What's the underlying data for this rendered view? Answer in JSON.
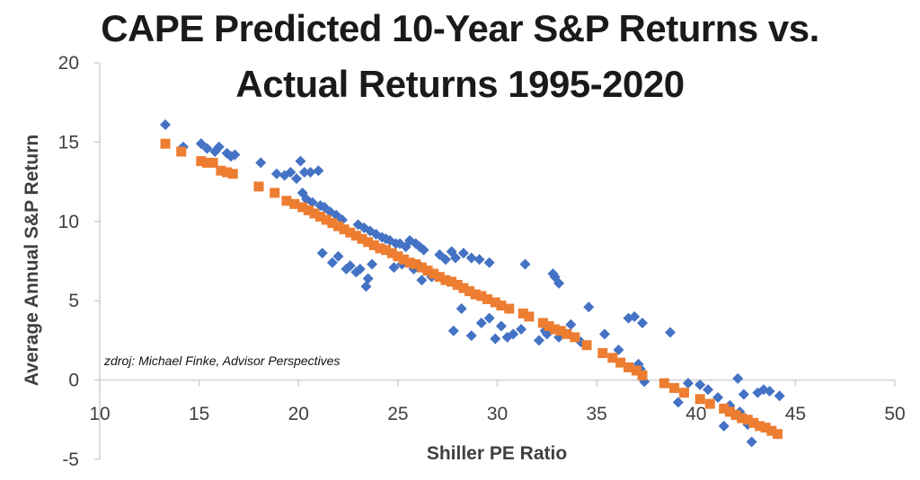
{
  "chart_data": {
    "type": "scatter",
    "title_lines": [
      "CAPE Predicted 10-Year S&P Returns vs.",
      "Actual Returns 1995-2020"
    ],
    "xlabel": "Shiller PE Ratio",
    "ylabel": "Average Annual S&P Return",
    "xlim": [
      10,
      50
    ],
    "ylim": [
      -5,
      20
    ],
    "x_ticks": [
      10,
      15,
      20,
      25,
      30,
      35,
      40,
      45,
      50
    ],
    "y_ticks": [
      -5,
      0,
      5,
      10,
      15,
      20
    ],
    "grid": false,
    "source_note": "zdroj: Michael Finke, Advisor Perspectives",
    "series": [
      {
        "marker": "diamond",
        "color": "#4472C4",
        "x": [
          13.3,
          14.2,
          15.1,
          15.4,
          15.8,
          16.0,
          16.4,
          16.6,
          16.8,
          18.1,
          18.9,
          19.3,
          19.6,
          19.9,
          20.1,
          20.3,
          20.6,
          21.0,
          20.2,
          20.4,
          20.7,
          21.1,
          21.3,
          21.6,
          21.9,
          22.2,
          21.2,
          21.7,
          22.0,
          22.4,
          22.6,
          22.9,
          23.1,
          23.4,
          23.5,
          23.7,
          23.0,
          23.3,
          23.6,
          23.9,
          24.2,
          24.4,
          24.6,
          24.9,
          25.1,
          25.4,
          25.6,
          25.9,
          26.1,
          26.3,
          24.8,
          25.2,
          25.5,
          25.8,
          26.1,
          26.4,
          26.7,
          26.2,
          26.8,
          27.1,
          27.4,
          27.7,
          27.9,
          28.3,
          28.7,
          29.1,
          29.6,
          27.8,
          28.2,
          28.7,
          29.2,
          29.6,
          29.9,
          30.2,
          30.5,
          30.8,
          31.2,
          31.4,
          32.1,
          32.5,
          32.8,
          32.9,
          33.1,
          32.4,
          33.1,
          33.7,
          34.2,
          34.6,
          35.4,
          36.1,
          36.6,
          36.9,
          37.3,
          37.1,
          37.2,
          37.4,
          38.7,
          39.1,
          39.6,
          40.2,
          40.6,
          41.1,
          41.4,
          41.7,
          42.1,
          42.2,
          42.4,
          42.6,
          42.8,
          43.1,
          43.4,
          43.7,
          44.2
        ],
        "y": [
          16.1,
          14.7,
          14.9,
          14.6,
          14.4,
          14.7,
          14.3,
          14.1,
          14.2,
          13.7,
          13.0,
          12.9,
          13.1,
          12.7,
          13.8,
          13.1,
          13.1,
          13.2,
          11.8,
          11.4,
          11.2,
          11.0,
          10.9,
          10.6,
          10.4,
          10.1,
          8.0,
          7.4,
          7.8,
          7.0,
          7.2,
          6.8,
          7.0,
          5.9,
          6.4,
          7.3,
          9.8,
          9.6,
          9.4,
          9.2,
          9.0,
          8.9,
          8.8,
          8.6,
          8.6,
          8.4,
          8.8,
          8.6,
          8.4,
          8.2,
          7.1,
          7.3,
          7.4,
          7.0,
          7.2,
          6.9,
          6.5,
          6.3,
          6.7,
          7.9,
          7.6,
          8.1,
          7.7,
          8.0,
          7.7,
          7.6,
          7.4,
          3.1,
          4.5,
          2.8,
          3.6,
          3.9,
          2.6,
          3.4,
          2.7,
          2.9,
          3.2,
          7.3,
          2.5,
          2.9,
          6.7,
          6.5,
          6.1,
          3.1,
          2.7,
          3.5,
          2.4,
          4.6,
          2.9,
          1.9,
          3.9,
          4.0,
          3.6,
          1.0,
          0.7,
          -0.1,
          3.0,
          -1.4,
          -0.2,
          -0.3,
          -0.6,
          -1.1,
          -2.9,
          -1.6,
          0.1,
          -2.0,
          -0.9,
          -2.8,
          -3.9,
          -0.8,
          -0.6,
          -0.7,
          -1.0
        ]
      },
      {
        "marker": "square",
        "color": "#ED7D31",
        "x": [
          13.3,
          14.1,
          15.1,
          15.4,
          15.7,
          16.1,
          16.4,
          16.7,
          18.0,
          18.8,
          19.4,
          19.8,
          20.2,
          20.5,
          20.8,
          21.1,
          21.4,
          21.7,
          22.0,
          22.3,
          22.6,
          22.9,
          23.2,
          23.5,
          23.8,
          24.1,
          24.4,
          24.7,
          25.0,
          25.3,
          25.6,
          25.9,
          26.2,
          26.5,
          26.8,
          27.1,
          27.4,
          27.7,
          28.0,
          28.3,
          28.6,
          28.9,
          29.2,
          29.5,
          29.9,
          30.2,
          30.6,
          31.3,
          31.6,
          32.3,
          32.6,
          32.9,
          33.2,
          33.5,
          33.9,
          34.5,
          35.3,
          35.8,
          36.2,
          36.6,
          37.0,
          37.3,
          38.4,
          38.9,
          39.4,
          40.2,
          40.7,
          41.4,
          41.7,
          42.0,
          42.3,
          42.6,
          42.9,
          43.2,
          43.5,
          43.8,
          44.1
        ],
        "y": [
          14.9,
          14.4,
          13.8,
          13.7,
          13.7,
          13.2,
          13.1,
          13.0,
          12.2,
          11.8,
          11.3,
          11.1,
          10.9,
          10.7,
          10.5,
          10.3,
          10.1,
          9.9,
          9.7,
          9.5,
          9.3,
          9.1,
          8.9,
          8.7,
          8.5,
          8.3,
          8.2,
          8.0,
          7.8,
          7.6,
          7.4,
          7.3,
          7.1,
          6.9,
          6.7,
          6.5,
          6.3,
          6.2,
          6.0,
          5.8,
          5.6,
          5.4,
          5.3,
          5.1,
          4.9,
          4.7,
          4.5,
          4.2,
          4.0,
          3.6,
          3.4,
          3.2,
          3.1,
          2.9,
          2.7,
          2.2,
          1.7,
          1.4,
          1.1,
          0.8,
          0.6,
          0.3,
          -0.2,
          -0.5,
          -0.8,
          -1.2,
          -1.5,
          -1.8,
          -2.0,
          -2.2,
          -2.4,
          -2.5,
          -2.7,
          -2.9,
          -3.0,
          -3.2,
          -3.4
        ]
      }
    ]
  }
}
